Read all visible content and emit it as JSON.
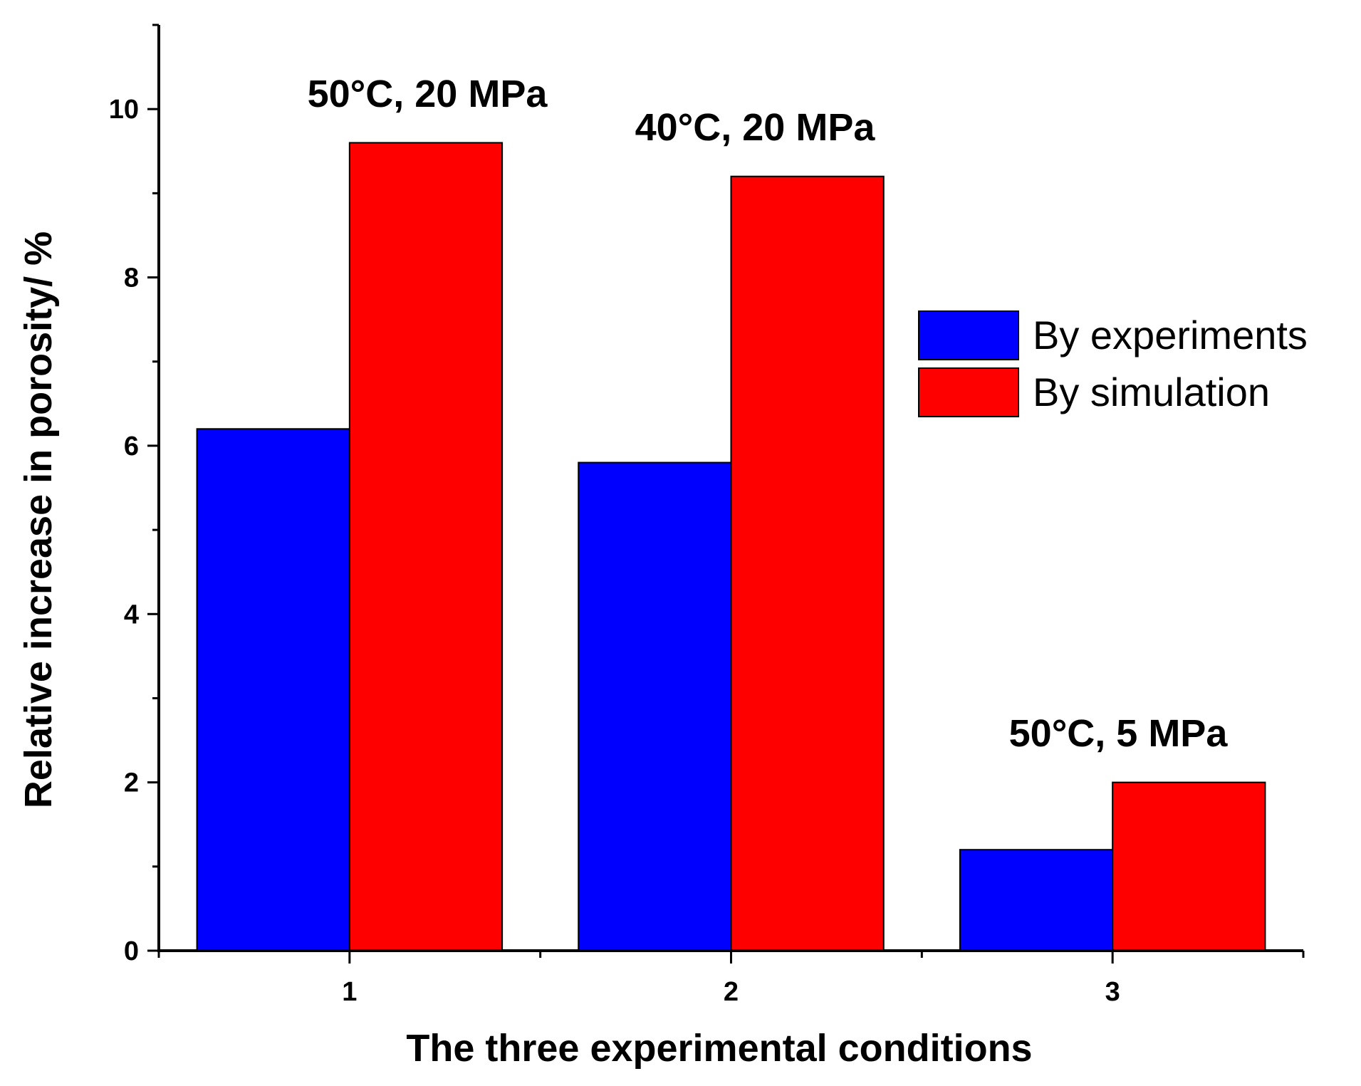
{
  "chart_data": {
    "type": "bar",
    "title": "",
    "xlabel": "The three experimental conditions",
    "ylabel": "Relative increase in porosity/ %",
    "categories": [
      "1",
      "2",
      "3"
    ],
    "ylim": [
      0,
      11
    ],
    "yticks": [
      "0",
      "2",
      "4",
      "6",
      "8",
      "10"
    ],
    "ytick_values": [
      0,
      2,
      4,
      6,
      8,
      10
    ],
    "series": [
      {
        "name": "By experiments",
        "color": "#0000ff",
        "values": [
          6.2,
          5.8,
          1.2
        ]
      },
      {
        "name": "By simulation",
        "color": "#ff0000",
        "values": [
          9.6,
          9.2,
          2.0
        ]
      }
    ],
    "annotations": [
      "50°C, 20 MPa",
      "40°C, 20 MPa",
      "50°C, 5 MPa"
    ],
    "legend_position": "right",
    "grid": false
  }
}
